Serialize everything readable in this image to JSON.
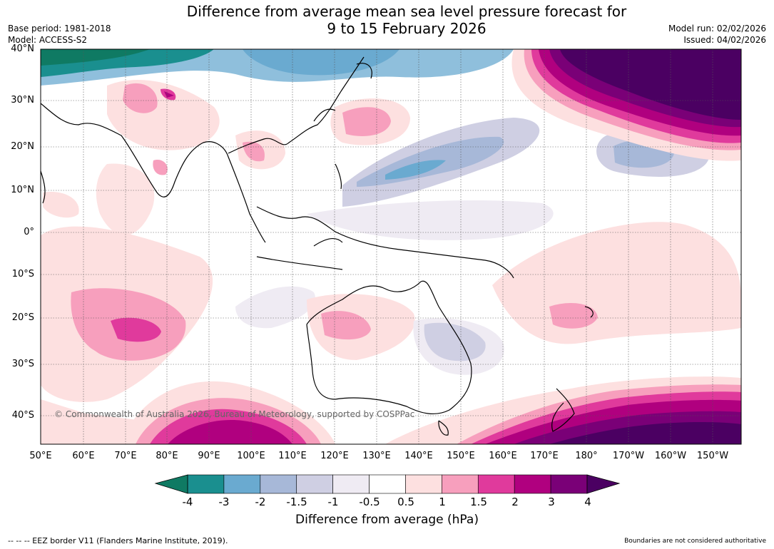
{
  "header": {
    "title_line1": "Difference from average mean sea level pressure forecast for",
    "title_line2": "9 to 15 February 2026",
    "base_period": "Base period: 1981-2018",
    "model": "Model: ACCESS-S2",
    "model_run": "Model run: 02/02/2026",
    "issued": "Issued: 04/02/2026"
  },
  "map": {
    "lat_labels": [
      "40°N",
      "30°N",
      "20°N",
      "10°N",
      "0°",
      "10°S",
      "20°S",
      "30°S",
      "40°S"
    ],
    "lon_labels": [
      "50°E",
      "60°E",
      "70°E",
      "80°E",
      "90°E",
      "100°E",
      "110°E",
      "120°E",
      "130°E",
      "140°E",
      "150°E",
      "160°E",
      "170°E",
      "180°",
      "170°W",
      "160°W",
      "150°W"
    ],
    "copyright": "© Commonwealth of Australia 2026, Bureau of Meteorology, supported by COSPPac"
  },
  "legend": {
    "title": "Difference from average (hPa)",
    "ticks": [
      "-4",
      "-3",
      "-2",
      "-1.5",
      "-1",
      "-0.5",
      "0.5",
      "1",
      "1.5",
      "2",
      "3",
      "4"
    ],
    "colors": [
      "#1a8f8f",
      "#6aaad0",
      "#a7b8d8",
      "#cfcfe3",
      "#efebf3",
      "#ffffff",
      "#fde0e0",
      "#f79fbd",
      "#e03a9c",
      "#b0007f",
      "#7a0077"
    ],
    "under_color": "#0f7a63",
    "over_color": "#4b0062"
  },
  "footer": {
    "eez_note": "--  --  -- EEZ border V11 (Flanders Marine Institute, 2019).",
    "boundaries_note": "Boundaries are not considered authoritative"
  }
}
